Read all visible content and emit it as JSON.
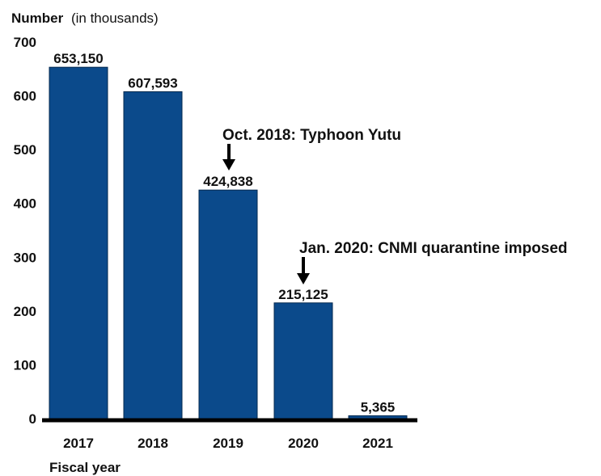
{
  "chart_data": {
    "type": "bar",
    "ylabel_bold": "Number",
    "ylabel_rest": "(in thousands)",
    "xlabel": "Fiscal year",
    "categories": [
      "2017",
      "2018",
      "2019",
      "2020",
      "2021"
    ],
    "values": [
      653.15,
      607.593,
      424.838,
      215.125,
      5.365
    ],
    "value_labels": [
      "653,150",
      "607,593",
      "424,838",
      "215,125",
      "5,365"
    ],
    "y_ticks": [
      0,
      100,
      200,
      300,
      400,
      500,
      600,
      700
    ],
    "y_tick_labels": [
      "0",
      "100",
      "200",
      "300",
      "400",
      "500",
      "600",
      "700"
    ],
    "ylim": [
      0,
      700
    ],
    "grid": false,
    "bar_color": "#0b4a8b",
    "annotations": [
      {
        "text": "Oct. 2018: Typhoon Yutu",
        "category": "2019",
        "arrow_to": 424.838
      },
      {
        "text": "Jan. 2020: CNMI quarantine imposed",
        "category": "2020",
        "arrow_to": 215.125
      }
    ]
  }
}
